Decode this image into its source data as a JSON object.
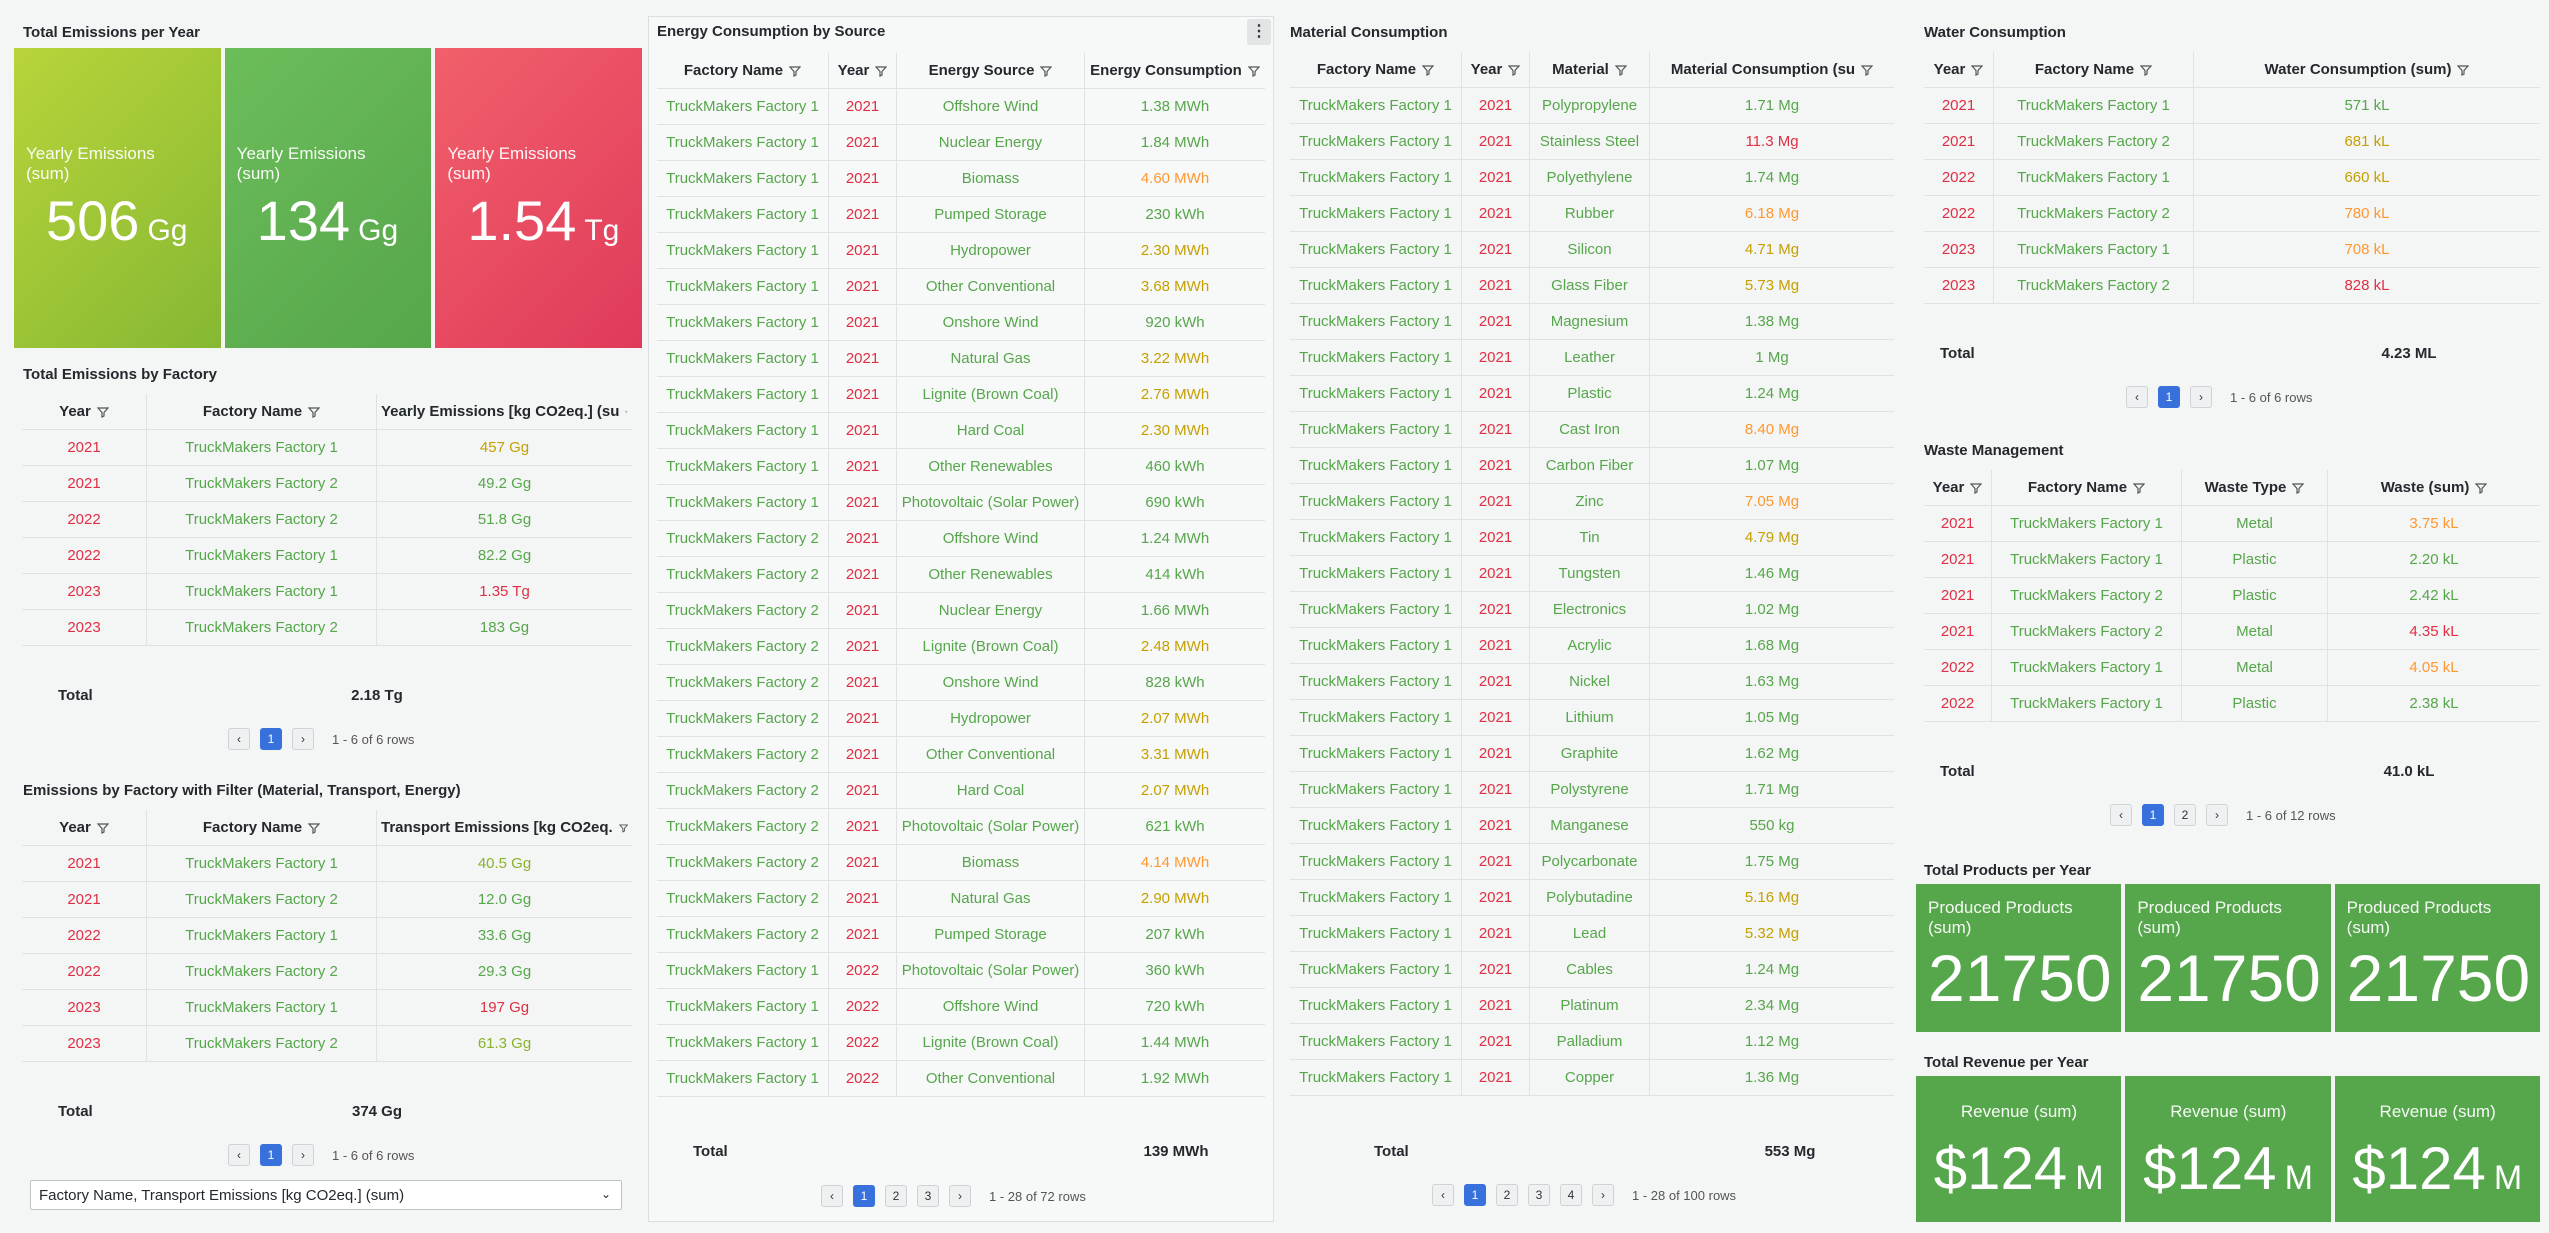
{
  "colors": {
    "green": "#56a64b",
    "red": "#e02f44",
    "orange": "#ff9830",
    "yellow": "#c4a000",
    "accent": "#3871dc"
  },
  "emissions_year": {
    "title": "Total Emissions per Year",
    "stats": [
      {
        "label": "Yearly Emissions (sum)",
        "value": "506",
        "unit": "Gg",
        "bg": "linear-gradient(135deg,#b8d43a,#86b833)"
      },
      {
        "label": "Yearly Emissions (sum)",
        "value": "134",
        "unit": "Gg",
        "bg": "linear-gradient(135deg,#6cbd5a,#56a64b)"
      },
      {
        "label": "Yearly Emissions (sum)",
        "value": "1.54",
        "unit": "Tg",
        "bg": "linear-gradient(135deg,#f1606b,#e03a5a)"
      }
    ]
  },
  "emissions_factory": {
    "title": "Total Emissions by Factory",
    "headers": [
      "Year",
      "Factory Name",
      "Yearly Emissions [kg CO2eq.] (su"
    ],
    "rows": [
      [
        "2021",
        "TruckMakers Factory 1",
        "457 Gg",
        "y"
      ],
      [
        "2021",
        "TruckMakers Factory 2",
        "49.2 Gg",
        "g"
      ],
      [
        "2022",
        "TruckMakers Factory 2",
        "51.8 Gg",
        "g"
      ],
      [
        "2022",
        "TruckMakers Factory 1",
        "82.2 Gg",
        "g"
      ],
      [
        "2023",
        "TruckMakers Factory 1",
        "1.35 Tg",
        "r"
      ],
      [
        "2023",
        "TruckMakers Factory 2",
        "183 Gg",
        "g"
      ]
    ],
    "total_label": "Total",
    "total_value": "2.18 Tg",
    "pages": [
      "1"
    ],
    "range": "1 - 6 of 6 rows"
  },
  "emissions_filter": {
    "title": "Emissions by Factory with Filter (Material, Transport, Energy)",
    "headers": [
      "Year",
      "Factory Name",
      "Transport Emissions [kg CO2eq."
    ],
    "rows": [
      [
        "2021",
        "TruckMakers Factory 1",
        "40.5 Gg",
        "lg"
      ],
      [
        "2021",
        "TruckMakers Factory 2",
        "12.0 Gg",
        "g"
      ],
      [
        "2022",
        "TruckMakers Factory 1",
        "33.6 Gg",
        "g"
      ],
      [
        "2022",
        "TruckMakers Factory 2",
        "29.3 Gg",
        "g"
      ],
      [
        "2023",
        "TruckMakers Factory 1",
        "197 Gg",
        "r"
      ],
      [
        "2023",
        "TruckMakers Factory 2",
        "61.3 Gg",
        "lg"
      ]
    ],
    "total_label": "Total",
    "total_value": "374 Gg",
    "pages": [
      "1"
    ],
    "range": "1 - 6 of 6 rows",
    "select_value": "Factory Name, Transport Emissions [kg CO2eq.] (sum)"
  },
  "energy": {
    "title": "Energy Consumption by Source",
    "headers": [
      "Factory Name",
      "Year",
      "Energy Source",
      "Energy Consumption"
    ],
    "rows": [
      [
        "TruckMakers Factory 1",
        "2021",
        "Offshore Wind",
        "1.38 MWh",
        "g"
      ],
      [
        "TruckMakers Factory 1",
        "2021",
        "Nuclear Energy",
        "1.84 MWh",
        "g"
      ],
      [
        "TruckMakers Factory 1",
        "2021",
        "Biomass",
        "4.60 MWh",
        "o"
      ],
      [
        "TruckMakers Factory 1",
        "2021",
        "Pumped Storage",
        "230 kWh",
        "g"
      ],
      [
        "TruckMakers Factory 1",
        "2021",
        "Hydropower",
        "2.30 MWh",
        "y"
      ],
      [
        "TruckMakers Factory 1",
        "2021",
        "Other Conventional",
        "3.68 MWh",
        "y"
      ],
      [
        "TruckMakers Factory 1",
        "2021",
        "Onshore Wind",
        "920 kWh",
        "g"
      ],
      [
        "TruckMakers Factory 1",
        "2021",
        "Natural Gas",
        "3.22 MWh",
        "y"
      ],
      [
        "TruckMakers Factory 1",
        "2021",
        "Lignite (Brown Coal)",
        "2.76 MWh",
        "y"
      ],
      [
        "TruckMakers Factory 1",
        "2021",
        "Hard Coal",
        "2.30 MWh",
        "y"
      ],
      [
        "TruckMakers Factory 1",
        "2021",
        "Other Renewables",
        "460 kWh",
        "g"
      ],
      [
        "TruckMakers Factory 1",
        "2021",
        "Photovoltaic (Solar Power)",
        "690 kWh",
        "g"
      ],
      [
        "TruckMakers Factory 2",
        "2021",
        "Offshore Wind",
        "1.24 MWh",
        "g"
      ],
      [
        "TruckMakers Factory 2",
        "2021",
        "Other Renewables",
        "414 kWh",
        "g"
      ],
      [
        "TruckMakers Factory 2",
        "2021",
        "Nuclear Energy",
        "1.66 MWh",
        "g"
      ],
      [
        "TruckMakers Factory 2",
        "2021",
        "Lignite (Brown Coal)",
        "2.48 MWh",
        "y"
      ],
      [
        "TruckMakers Factory 2",
        "2021",
        "Onshore Wind",
        "828 kWh",
        "g"
      ],
      [
        "TruckMakers Factory 2",
        "2021",
        "Hydropower",
        "2.07 MWh",
        "y"
      ],
      [
        "TruckMakers Factory 2",
        "2021",
        "Other Conventional",
        "3.31 MWh",
        "y"
      ],
      [
        "TruckMakers Factory 2",
        "2021",
        "Hard Coal",
        "2.07 MWh",
        "y"
      ],
      [
        "TruckMakers Factory 2",
        "2021",
        "Photovoltaic (Solar Power)",
        "621 kWh",
        "g"
      ],
      [
        "TruckMakers Factory 2",
        "2021",
        "Biomass",
        "4.14 MWh",
        "o"
      ],
      [
        "TruckMakers Factory 2",
        "2021",
        "Natural Gas",
        "2.90 MWh",
        "y"
      ],
      [
        "TruckMakers Factory 2",
        "2021",
        "Pumped Storage",
        "207 kWh",
        "g"
      ],
      [
        "TruckMakers Factory 1",
        "2022",
        "Photovoltaic (Solar Power)",
        "360 kWh",
        "g"
      ],
      [
        "TruckMakers Factory 1",
        "2022",
        "Offshore Wind",
        "720 kWh",
        "g"
      ],
      [
        "TruckMakers Factory 1",
        "2022",
        "Lignite (Brown Coal)",
        "1.44 MWh",
        "g"
      ],
      [
        "TruckMakers Factory 1",
        "2022",
        "Other Conventional",
        "1.92 MWh",
        "g"
      ]
    ],
    "total_label": "Total",
    "total_value": "139 MWh",
    "pages": [
      "1",
      "2",
      "3"
    ],
    "range": "1 - 28 of 72 rows"
  },
  "material": {
    "title": "Material Consumption",
    "headers": [
      "Factory Name",
      "Year",
      "Material",
      "Material Consumption (su"
    ],
    "rows": [
      [
        "TruckMakers Factory 1",
        "2021",
        "Polypropylene",
        "1.71 Mg",
        "g"
      ],
      [
        "TruckMakers Factory 1",
        "2021",
        "Stainless Steel",
        "11.3 Mg",
        "r"
      ],
      [
        "TruckMakers Factory 1",
        "2021",
        "Polyethylene",
        "1.74 Mg",
        "g"
      ],
      [
        "TruckMakers Factory 1",
        "2021",
        "Rubber",
        "6.18 Mg",
        "o"
      ],
      [
        "TruckMakers Factory 1",
        "2021",
        "Silicon",
        "4.71 Mg",
        "y"
      ],
      [
        "TruckMakers Factory 1",
        "2021",
        "Glass Fiber",
        "5.73 Mg",
        "y"
      ],
      [
        "TruckMakers Factory 1",
        "2021",
        "Magnesium",
        "1.38 Mg",
        "g"
      ],
      [
        "TruckMakers Factory 1",
        "2021",
        "Leather",
        "1 Mg",
        "g"
      ],
      [
        "TruckMakers Factory 1",
        "2021",
        "Plastic",
        "1.24 Mg",
        "g"
      ],
      [
        "TruckMakers Factory 1",
        "2021",
        "Cast Iron",
        "8.40 Mg",
        "o"
      ],
      [
        "TruckMakers Factory 1",
        "2021",
        "Carbon Fiber",
        "1.07 Mg",
        "g"
      ],
      [
        "TruckMakers Factory 1",
        "2021",
        "Zinc",
        "7.05 Mg",
        "o"
      ],
      [
        "TruckMakers Factory 1",
        "2021",
        "Tin",
        "4.79 Mg",
        "y"
      ],
      [
        "TruckMakers Factory 1",
        "2021",
        "Tungsten",
        "1.46 Mg",
        "g"
      ],
      [
        "TruckMakers Factory 1",
        "2021",
        "Electronics",
        "1.02 Mg",
        "g"
      ],
      [
        "TruckMakers Factory 1",
        "2021",
        "Acrylic",
        "1.68 Mg",
        "g"
      ],
      [
        "TruckMakers Factory 1",
        "2021",
        "Nickel",
        "1.63 Mg",
        "g"
      ],
      [
        "TruckMakers Factory 1",
        "2021",
        "Lithium",
        "1.05 Mg",
        "g"
      ],
      [
        "TruckMakers Factory 1",
        "2021",
        "Graphite",
        "1.62 Mg",
        "g"
      ],
      [
        "TruckMakers Factory 1",
        "2021",
        "Polystyrene",
        "1.71 Mg",
        "g"
      ],
      [
        "TruckMakers Factory 1",
        "2021",
        "Manganese",
        "550 kg",
        "g"
      ],
      [
        "TruckMakers Factory 1",
        "2021",
        "Polycarbonate",
        "1.75 Mg",
        "g"
      ],
      [
        "TruckMakers Factory 1",
        "2021",
        "Polybutadine",
        "5.16 Mg",
        "y"
      ],
      [
        "TruckMakers Factory 1",
        "2021",
        "Lead",
        "5.32 Mg",
        "y"
      ],
      [
        "TruckMakers Factory 1",
        "2021",
        "Cables",
        "1.24 Mg",
        "g"
      ],
      [
        "TruckMakers Factory 1",
        "2021",
        "Platinum",
        "2.34 Mg",
        "g"
      ],
      [
        "TruckMakers Factory 1",
        "2021",
        "Palladium",
        "1.12 Mg",
        "g"
      ],
      [
        "TruckMakers Factory 1",
        "2021",
        "Copper",
        "1.36 Mg",
        "g"
      ]
    ],
    "total_label": "Total",
    "total_value": "553 Mg",
    "pages": [
      "1",
      "2",
      "3",
      "4"
    ],
    "range": "1 - 28 of 100 rows"
  },
  "water": {
    "title": "Water Consumption",
    "headers": [
      "Year",
      "Factory Name",
      "Water Consumption (sum)"
    ],
    "rows": [
      [
        "2021",
        "TruckMakers Factory 1",
        "571 kL",
        "g"
      ],
      [
        "2021",
        "TruckMakers Factory 2",
        "681 kL",
        "y"
      ],
      [
        "2022",
        "TruckMakers Factory 1",
        "660 kL",
        "y"
      ],
      [
        "2022",
        "TruckMakers Factory 2",
        "780 kL",
        "o"
      ],
      [
        "2023",
        "TruckMakers Factory 1",
        "708 kL",
        "o"
      ],
      [
        "2023",
        "TruckMakers Factory 2",
        "828 kL",
        "r"
      ]
    ],
    "total_label": "Total",
    "total_value": "4.23 ML",
    "pages": [
      "1"
    ],
    "range": "1 - 6 of 6 rows"
  },
  "waste": {
    "title": "Waste Management",
    "headers": [
      "Year",
      "Factory Name",
      "Waste Type",
      "Waste (sum)"
    ],
    "rows": [
      [
        "2021",
        "TruckMakers Factory 1",
        "Metal",
        "3.75 kL",
        "o"
      ],
      [
        "2021",
        "TruckMakers Factory 1",
        "Plastic",
        "2.20 kL",
        "g"
      ],
      [
        "2021",
        "TruckMakers Factory 2",
        "Plastic",
        "2.42 kL",
        "g"
      ],
      [
        "2021",
        "TruckMakers Factory 2",
        "Metal",
        "4.35 kL",
        "r"
      ],
      [
        "2022",
        "TruckMakers Factory 1",
        "Metal",
        "4.05 kL",
        "o"
      ],
      [
        "2022",
        "TruckMakers Factory 1",
        "Plastic",
        "2.38 kL",
        "g"
      ]
    ],
    "total_label": "Total",
    "total_value": "41.0 kL",
    "pages": [
      "1",
      "2"
    ],
    "range": "1 - 6 of 12 rows"
  },
  "products": {
    "title": "Total Products per Year",
    "stats": [
      {
        "label": "Produced Products (sum)",
        "value": "21750"
      },
      {
        "label": "Produced Products (sum)",
        "value": "21750"
      },
      {
        "label": "Produced Products (sum)",
        "value": "21750"
      }
    ]
  },
  "revenue": {
    "title": "Total Revenue per Year",
    "stats": [
      {
        "label": "Revenue (sum)",
        "value": "$124",
        "unit": "M"
      },
      {
        "label": "Revenue (sum)",
        "value": "$124",
        "unit": "M"
      },
      {
        "label": "Revenue (sum)",
        "value": "$124",
        "unit": "M"
      }
    ]
  }
}
